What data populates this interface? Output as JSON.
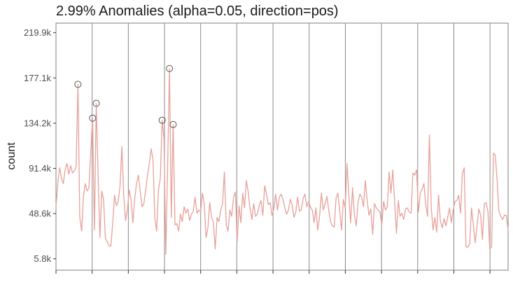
{
  "chart_data": {
    "type": "line",
    "title": "2.99% Anomalies (alpha=0.05, direction=pos)",
    "xlabel": "",
    "ylabel": "count",
    "ytick_labels": [
      "5.8k",
      "48.6k",
      "91.4k",
      "134.2k",
      "177.1k",
      "219.9k"
    ],
    "ytick_values": [
      5.8,
      48.6,
      91.4,
      134.2,
      177.1,
      219.9
    ],
    "ylim": [
      -5.0,
      229.0
    ],
    "xlim": [
      0,
      200
    ],
    "week_breaks": [
      16,
      32,
      48,
      64,
      80,
      96,
      112,
      128,
      144,
      160,
      176,
      192
    ],
    "values": [
      55,
      78,
      92,
      82,
      77,
      90,
      96,
      86,
      94,
      87,
      89,
      93,
      171,
      45,
      32,
      65,
      77,
      70,
      73,
      108,
      139,
      33,
      153,
      86,
      26,
      70,
      62,
      25,
      22,
      18,
      18,
      40,
      66,
      56,
      60,
      75,
      112,
      66,
      42,
      52,
      71,
      62,
      40,
      63,
      77,
      85,
      70,
      55,
      58,
      71,
      85,
      96,
      110,
      100,
      44,
      32,
      72,
      82,
      137,
      120,
      10,
      94,
      186,
      45,
      133,
      38,
      39,
      32,
      48,
      41,
      55,
      49,
      53,
      42,
      48,
      51,
      64,
      49,
      52,
      50,
      68,
      58,
      26,
      35,
      59,
      45,
      40,
      15,
      45,
      41,
      52,
      58,
      88,
      38,
      32,
      52,
      46,
      64,
      69,
      22,
      56,
      40,
      68,
      54,
      80,
      69,
      54,
      43,
      58,
      46,
      48,
      56,
      61,
      47,
      75,
      67,
      57,
      59,
      47,
      53,
      67,
      52,
      64,
      67,
      62,
      54,
      48,
      52,
      62,
      57,
      45,
      50,
      64,
      51,
      52,
      63,
      67,
      55,
      60,
      55,
      52,
      40,
      54,
      33,
      46,
      68,
      52,
      58,
      65,
      52,
      41,
      37,
      36,
      63,
      68,
      51,
      33,
      62,
      54,
      96,
      66,
      40,
      73,
      48,
      37,
      59,
      67,
      64,
      55,
      80,
      61,
      47,
      53,
      29,
      58,
      54,
      52,
      50,
      38,
      60,
      52,
      55,
      88,
      68,
      90,
      60,
      30,
      61,
      46,
      49,
      43,
      53,
      54,
      50,
      49,
      87,
      85,
      90,
      50,
      68,
      72,
      77,
      57,
      46,
      123,
      55,
      33,
      45,
      31,
      66,
      42,
      35,
      44,
      37,
      45,
      54,
      40,
      52,
      60,
      61,
      66,
      49,
      86,
      92,
      17,
      17,
      20,
      54,
      38,
      21,
      37,
      53,
      47,
      24,
      58,
      59,
      50,
      15,
      17,
      106,
      104,
      80,
      50,
      46,
      43,
      47,
      47,
      33
    ],
    "anomaly_indices": [
      12,
      20,
      22,
      58,
      62,
      64
    ]
  }
}
